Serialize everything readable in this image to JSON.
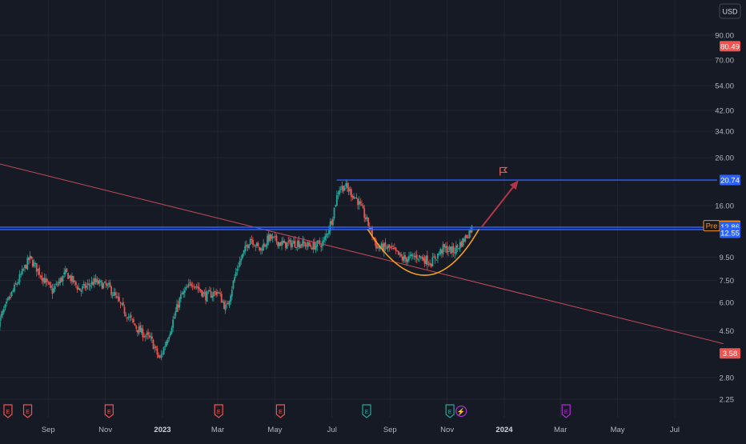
{
  "currency_button": "USD",
  "colors": {
    "background": "#161a25",
    "grid": "#222631",
    "up": "#26a69a",
    "down": "#ef5350",
    "trendline": "#c44b5c",
    "level_line": "#2962ff",
    "arc": "#f7a21b",
    "arrow": "#b2364a",
    "pre_badge": "#f7931a",
    "earnings_red": "#ef5350",
    "earnings_green": "#26a69a",
    "dividend_purple": "#b22bd8"
  },
  "chart_data": {
    "type": "candlestick",
    "y_scale": "log",
    "ylim": [
      2.0,
      125
    ],
    "y_ticks": [
      "90.00",
      "70.00",
      "54.00",
      "42.00",
      "34.00",
      "26.00",
      "16.00",
      "9.50",
      "7.50",
      "6.00",
      "4.50",
      "2.80",
      "2.25"
    ],
    "x_ticks": [
      {
        "label": "Sep",
        "date": "2022-09-01",
        "bold": false
      },
      {
        "label": "Nov",
        "date": "2022-11-01",
        "bold": false
      },
      {
        "label": "2023",
        "date": "2023-01-01",
        "bold": true
      },
      {
        "label": "Mar",
        "date": "2023-03-01",
        "bold": false
      },
      {
        "label": "May",
        "date": "2023-05-01",
        "bold": false
      },
      {
        "label": "Jul",
        "date": "2023-07-01",
        "bold": false
      },
      {
        "label": "Sep",
        "date": "2023-09-01",
        "bold": false
      },
      {
        "label": "Nov",
        "date": "2023-11-01",
        "bold": false
      },
      {
        "label": "2024",
        "date": "2024-01-01",
        "bold": true
      },
      {
        "label": "Mar",
        "date": "2024-03-01",
        "bold": false
      },
      {
        "label": "May",
        "date": "2024-05-01",
        "bold": false
      },
      {
        "label": "Jul",
        "date": "2024-07-01",
        "bold": false
      }
    ],
    "price_path": [
      [
        "2022-07-10",
        4.9
      ],
      [
        "2022-07-25",
        6.7
      ],
      [
        "2022-08-12",
        9.4
      ],
      [
        "2022-08-22",
        8.2
      ],
      [
        "2022-09-05",
        6.7
      ],
      [
        "2022-09-20",
        8.1
      ],
      [
        "2022-10-05",
        6.8
      ],
      [
        "2022-10-20",
        7.4
      ],
      [
        "2022-11-05",
        7.0
      ],
      [
        "2022-11-20",
        5.6
      ],
      [
        "2022-12-05",
        4.6
      ],
      [
        "2022-12-20",
        4.1
      ],
      [
        "2022-12-29",
        3.35
      ],
      [
        "2023-01-08",
        4.4
      ],
      [
        "2023-01-20",
        6.3
      ],
      [
        "2023-02-02",
        7.4
      ],
      [
        "2023-02-16",
        6.4
      ],
      [
        "2023-03-01",
        6.7
      ],
      [
        "2023-03-10",
        5.6
      ],
      [
        "2023-03-22",
        8.6
      ],
      [
        "2023-04-05",
        11.6
      ],
      [
        "2023-04-15",
        10.2
      ],
      [
        "2023-04-25",
        11.6
      ],
      [
        "2023-05-10",
        10.8
      ],
      [
        "2023-05-25",
        11.0
      ],
      [
        "2023-06-10",
        10.6
      ],
      [
        "2023-06-22",
        11.0
      ],
      [
        "2023-07-01",
        14.0
      ],
      [
        "2023-07-08",
        19.0
      ],
      [
        "2023-07-15",
        19.5
      ],
      [
        "2023-07-28",
        17.0
      ],
      [
        "2023-08-08",
        13.5
      ],
      [
        "2023-08-18",
        10.5
      ],
      [
        "2023-09-01",
        10.4
      ],
      [
        "2023-09-15",
        9.3
      ],
      [
        "2023-10-01",
        9.6
      ],
      [
        "2023-10-15",
        9.0
      ],
      [
        "2023-10-28",
        10.4
      ],
      [
        "2023-11-08",
        10.1
      ],
      [
        "2023-11-18",
        11.2
      ],
      [
        "2023-11-28",
        12.9
      ]
    ],
    "horizontal_levels": [
      {
        "name": "resistance-upper",
        "value": 20.74,
        "from": "2023-07-06",
        "label": "20.74"
      },
      {
        "name": "resistance-mid-a",
        "value": 12.86,
        "from": "2022-07-01",
        "label": "12.86"
      },
      {
        "name": "resistance-mid-b",
        "value": 12.55,
        "from": "2022-07-01",
        "label": "12.55"
      }
    ],
    "trendline": {
      "start": [
        "2022-07-01",
        25.0
      ],
      "end": [
        "2024-08-22",
        3.95
      ]
    },
    "cup_arc": {
      "start": [
        "2023-08-08",
        12.6
      ],
      "bottom": [
        "2023-10-08",
        7.9
      ],
      "end": [
        "2023-12-05",
        12.6
      ]
    },
    "projection_arrow": {
      "start": [
        "2023-12-08",
        12.9
      ],
      "end": [
        "2024-01-15",
        20.4
      ]
    },
    "flag_marker": {
      "date": "2023-12-31",
      "value": 22.6
    },
    "price_tags": [
      {
        "name": "tag-80-49",
        "value": 80.49,
        "label": "80.49",
        "style": "red"
      },
      {
        "name": "tag-pre",
        "value": 13.05,
        "label": "13.05",
        "prefix": "Pre",
        "style": "orange"
      },
      {
        "name": "tag-3-58",
        "value": 3.58,
        "label": "3.58",
        "style": "red"
      }
    ],
    "events": [
      {
        "date": "2022-07-20",
        "kind": "E",
        "style": "red"
      },
      {
        "date": "2022-08-10",
        "kind": "E",
        "style": "red"
      },
      {
        "date": "2022-11-05",
        "kind": "E",
        "style": "red"
      },
      {
        "date": "2023-03-02",
        "kind": "E",
        "style": "red"
      },
      {
        "date": "2023-05-07",
        "kind": "E",
        "style": "red"
      },
      {
        "date": "2023-08-07",
        "kind": "E",
        "style": "green"
      },
      {
        "date": "2023-11-04",
        "kind": "E",
        "style": "green"
      },
      {
        "date": "2023-11-16",
        "kind": "⚡",
        "style": "purple"
      },
      {
        "date": "2024-03-07",
        "kind": "E",
        "style": "purple"
      }
    ]
  }
}
